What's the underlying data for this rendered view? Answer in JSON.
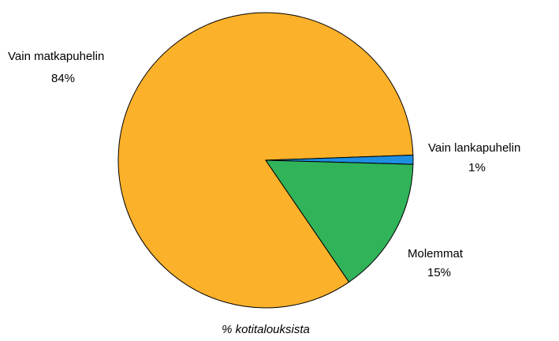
{
  "chart_data": {
    "type": "pie",
    "subtitle": "% kotitalouksista",
    "categories": [
      "Vain matkapuhelin",
      "Vain lankapuhelin",
      "Molemmat"
    ],
    "values": [
      84,
      1,
      15
    ],
    "value_labels": [
      "84%",
      "1%",
      "15%"
    ],
    "colors": [
      "#fbb12a",
      "#1e8fe0",
      "#31b35a"
    ]
  }
}
